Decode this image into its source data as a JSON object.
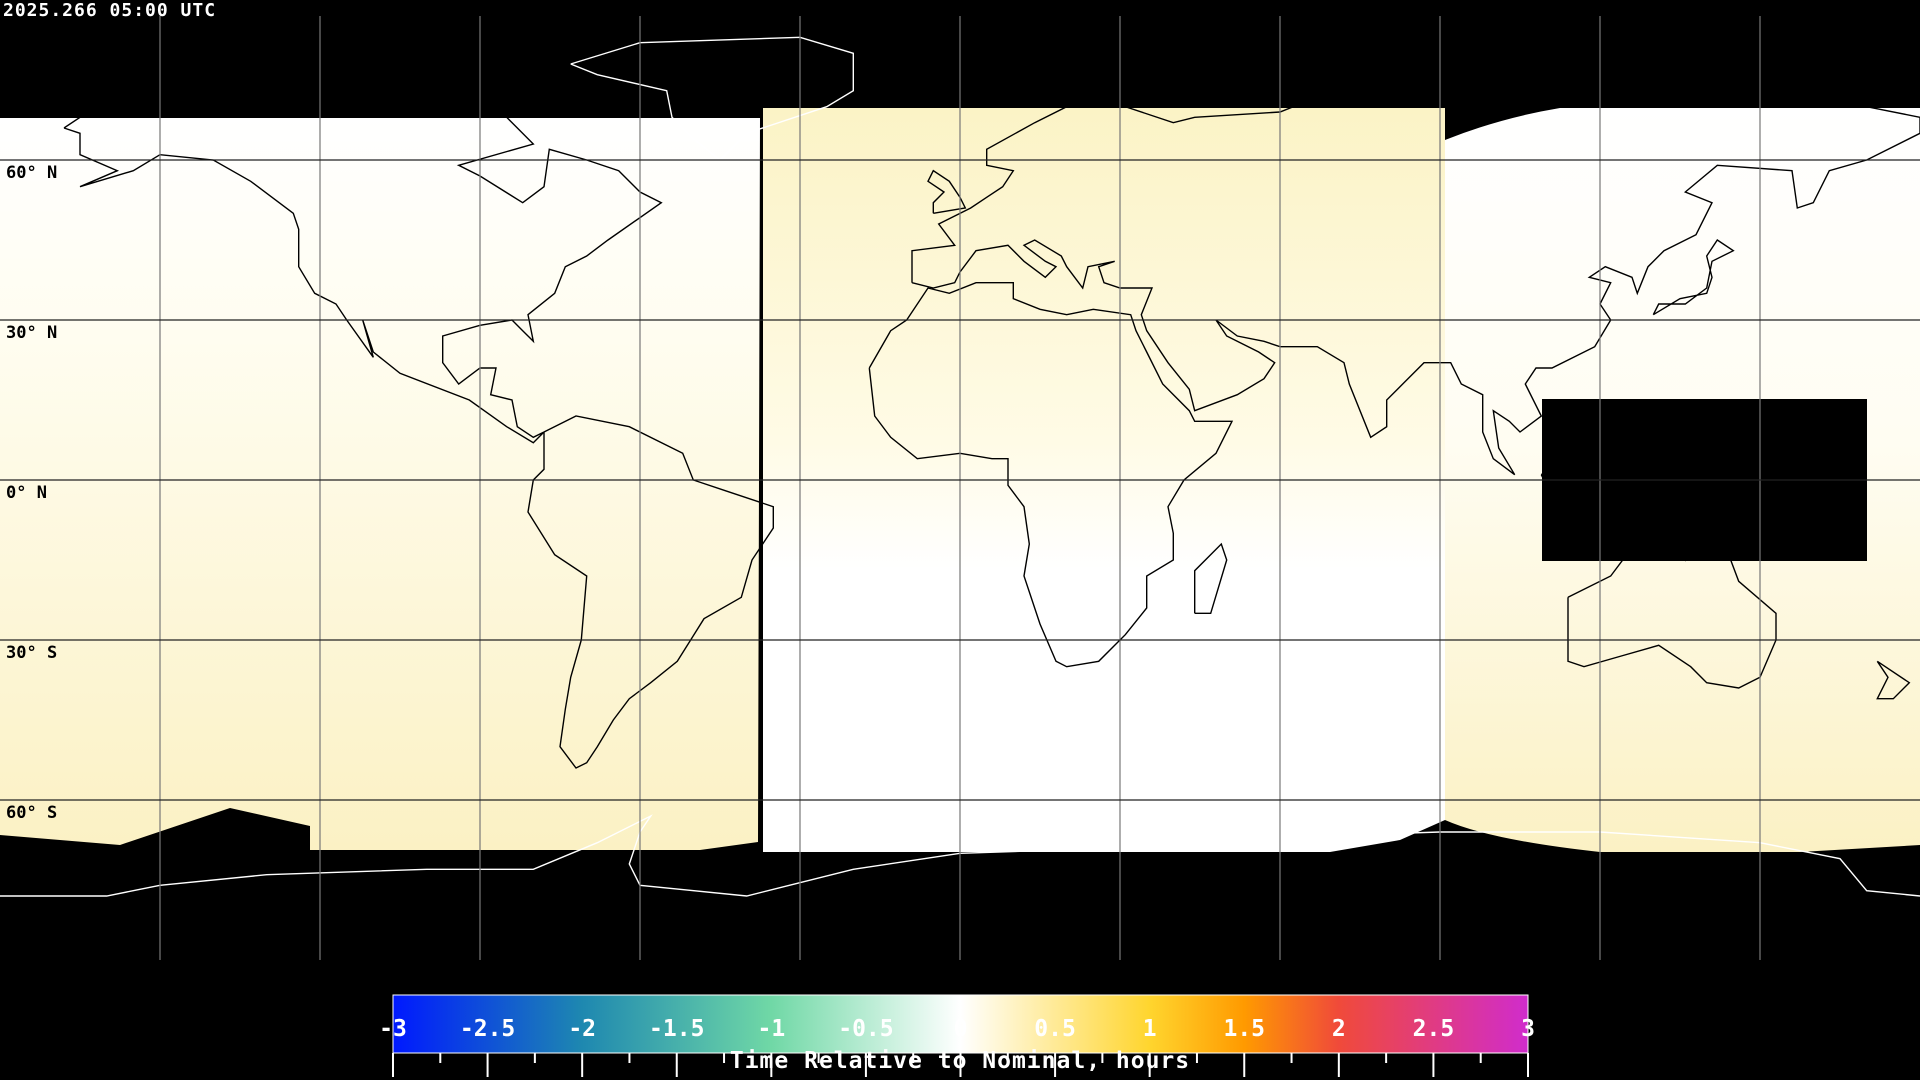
{
  "header": {
    "timestamp": "2025.266 05:00 UTC"
  },
  "map": {
    "projection": "equirectangular",
    "graticule_spacing_deg": 30,
    "lat_labels": [
      "60° N",
      "30° N",
      "0° N",
      "30° S",
      "60° S"
    ],
    "colors": {
      "background": "#000000",
      "coastline_on_dark": "#ffffff",
      "coastline_on_light": "#000000",
      "grid": "#000000"
    }
  },
  "colorbar": {
    "title": "Time Relative to Nominal, hours",
    "range": [
      -3,
      3
    ],
    "tick_labels": [
      "-3",
      "-2.5",
      "-2",
      "-1.5",
      "-1",
      "-0.5",
      "0",
      "0.5",
      "1",
      "1.5",
      "2",
      "2.5",
      "3"
    ],
    "color_stops": [
      {
        "value": -3,
        "color": "#0019ff"
      },
      {
        "value": -2,
        "color": "#1e88b0"
      },
      {
        "value": -1,
        "color": "#70d8a6"
      },
      {
        "value": 0,
        "color": "#ffffff"
      },
      {
        "value": 1,
        "color": "#ffd52e"
      },
      {
        "value": 1.5,
        "color": "#ff9a00"
      },
      {
        "value": 2,
        "color": "#f04a3a"
      },
      {
        "value": 3,
        "color": "#d02ccc"
      }
    ]
  }
}
